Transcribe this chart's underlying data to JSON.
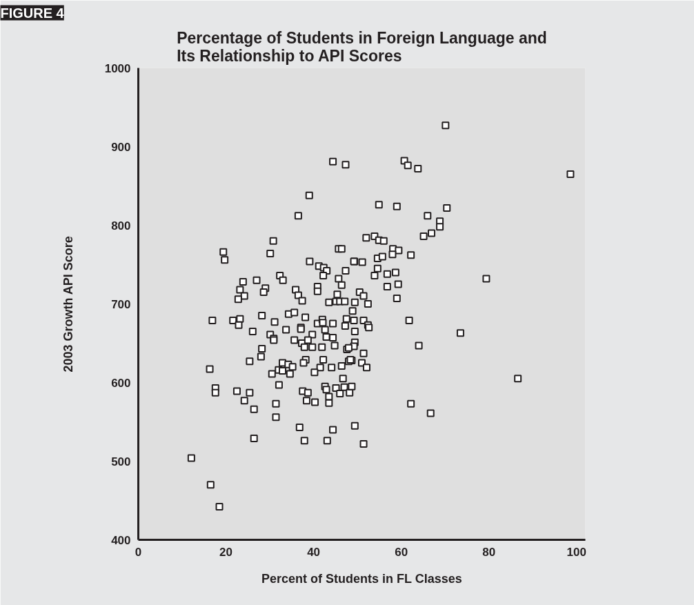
{
  "chart_data": {
    "type": "scatter",
    "title": "Percentage of Students in Foreign Language and\nIts Relationship to API Scores",
    "xlabel": "Percent of Students in FL Classes",
    "ylabel": "2003 Growth API Score",
    "annotations": [
      "FIGURE 4"
    ],
    "xlim": [
      0,
      102
    ],
    "ylim": [
      400,
      1000
    ],
    "xticks": [
      0,
      20,
      40,
      60,
      80,
      100
    ],
    "yticks": [
      400,
      500,
      600,
      700,
      800,
      900,
      1000
    ],
    "grid": false,
    "marker": "square",
    "series": [
      {
        "color": "#231f20",
        "x": [
          44.4,
          47.3,
          39.0,
          36.5,
          30.8,
          19.4,
          19.7,
          30.1,
          45.7,
          46.4,
          39.1,
          49.3,
          41.2,
          42.3,
          43.0,
          42.2,
          47.3,
          45.7,
          46.4,
          23.9,
          27.0,
          23.2,
          24.2,
          22.8,
          29.0,
          28.6,
          32.3,
          33.0,
          35.9,
          36.5,
          37.4,
          40.9,
          40.9,
          45.4,
          43.5,
          45.1,
          46.0,
          47.1,
          49.4,
          70.1,
          60.7,
          61.5,
          63.8,
          98.6,
          54.9,
          59.0,
          70.4,
          66.0,
          68.8,
          68.8,
          66.9,
          65.1,
          52.0,
          53.9,
          54.9,
          56.0,
          58.1,
          59.4,
          58.0,
          62.2,
          49.2,
          51.1,
          54.6,
          55.7,
          54.6,
          53.9,
          56.8,
          58.7,
          56.8,
          59.3,
          79.4,
          50.5,
          51.4,
          59.0,
          52.4,
          48.9,
          49.2,
          51.4,
          52.4,
          52.6,
          49.4,
          61.8,
          73.5,
          64.0,
          49.4,
          49.2,
          51.4,
          48.7,
          51.0,
          52.1,
          86.6,
          62.2,
          66.7,
          49.4,
          51.4,
          16.9,
          21.6,
          23.2,
          22.9,
          28.2,
          31.1,
          26.1,
          34.3,
          35.6,
          38.1,
          33.7,
          37.1,
          37.1,
          30.1,
          30.9,
          30.9,
          40.9,
          42.0,
          42.1,
          44.4,
          42.6,
          39.7,
          47.5,
          47.2,
          42.9,
          44.4,
          35.6,
          37.3,
          37.9,
          38.7,
          39.7,
          41.9,
          44.8,
          47.6,
          48.0,
          28.2,
          28.0,
          25.4,
          16.3,
          32.9,
          34.2,
          35.2,
          32.0,
          32.9,
          30.5,
          34.6,
          38.2,
          37.7,
          42.2,
          41.5,
          44.1,
          40.2,
          46.4,
          48.0,
          48.4,
          46.7,
          17.6,
          17.6,
          22.5,
          25.4,
          24.2,
          26.4,
          32.1,
          31.4,
          31.4,
          37.5,
          38.7,
          38.4,
          40.3,
          42.6,
          42.9,
          43.5,
          43.5,
          45.1,
          46.0,
          47.0,
          48.2,
          48.7,
          36.8,
          37.9,
          44.4,
          43.1,
          26.4,
          12.1,
          16.5,
          18.5
        ],
        "values": [
          881,
          877,
          838,
          812,
          780,
          766,
          756,
          764,
          770,
          770,
          754,
          754,
          748,
          746,
          742,
          736,
          742,
          732,
          724,
          728,
          730,
          718,
          710,
          706,
          720,
          715,
          736,
          730,
          718,
          711,
          704,
          722,
          716,
          712,
          702,
          703,
          703,
          703,
          702,
          927,
          882,
          876,
          872,
          865,
          826,
          824,
          822,
          812,
          805,
          798,
          790,
          786,
          784,
          786,
          781,
          780,
          770,
          768,
          763,
          762,
          754,
          753,
          758,
          760,
          745,
          736,
          738,
          740,
          722,
          725,
          732,
          715,
          710,
          707,
          700,
          691,
          679,
          679,
          673,
          670,
          665,
          679,
          663,
          647,
          651,
          646,
          637,
          628,
          625,
          619,
          605,
          573,
          561,
          545,
          522,
          679,
          679,
          681,
          673,
          685,
          677,
          665,
          687,
          689,
          683,
          667,
          670,
          668,
          661,
          656,
          654,
          675,
          680,
          676,
          675,
          667,
          661,
          681,
          672,
          658,
          657,
          654,
          650,
          645,
          654,
          645,
          645,
          647,
          642,
          644,
          643,
          633,
          627,
          617,
          625,
          623,
          620,
          616,
          615,
          611,
          611,
          629,
          625,
          629,
          619,
          619,
          613,
          621,
          627,
          629,
          605,
          593,
          587,
          589,
          587,
          577,
          566,
          597,
          573,
          556,
          589,
          587,
          577,
          575,
          595,
          591,
          582,
          574,
          593,
          586,
          594,
          587,
          595,
          543,
          526,
          540,
          526,
          529,
          504,
          470,
          442
        ]
      }
    ]
  }
}
